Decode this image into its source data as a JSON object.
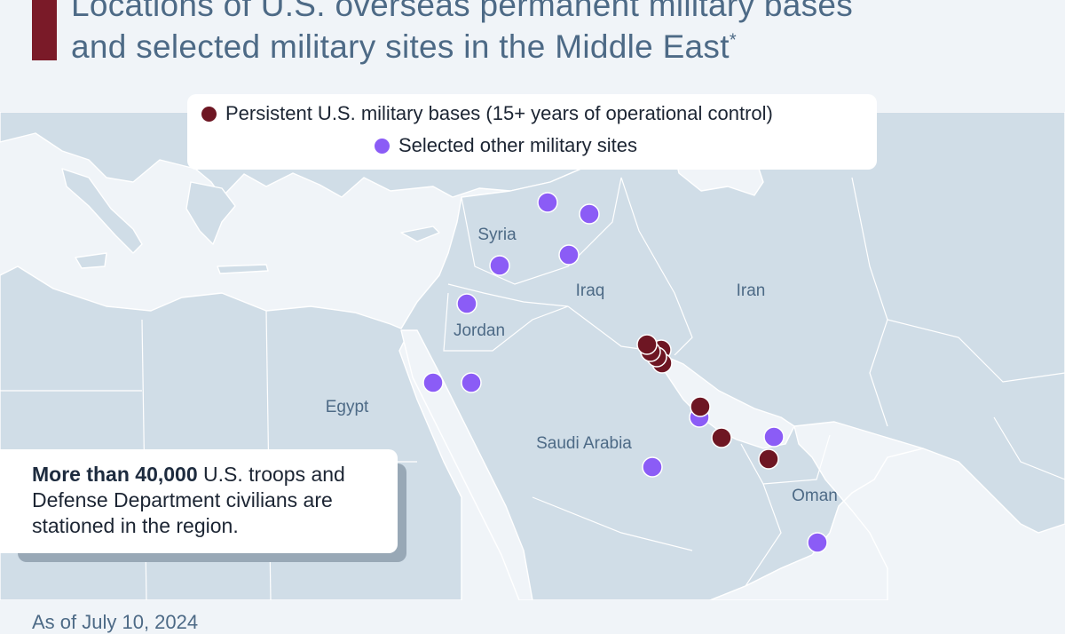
{
  "title": {
    "line1": "Locations of U.S. overseas permanent military bases",
    "line2": "and selected military sites in the Middle East",
    "marker": "*"
  },
  "legend": {
    "persistent_label": "Persistent U.S. military bases (15+ years of operational control)",
    "other_label": "Selected other military sites"
  },
  "colors": {
    "persistent": "#6e1623",
    "other": "#8b5cf6",
    "land": "#d0dde7",
    "sea": "#f0f4f8",
    "accent_bar": "#7a1a28",
    "text_blue": "#4d6a86"
  },
  "countries": [
    "Syria",
    "Iraq",
    "Iran",
    "Jordan",
    "Egypt",
    "Saudi Arabia",
    "Oman"
  ],
  "callout": {
    "bold": "More than 40,000",
    "text": " U.S. troops and Defense Department civilians are stationed in the region."
  },
  "footnote": "As of July 10, 2024"
}
